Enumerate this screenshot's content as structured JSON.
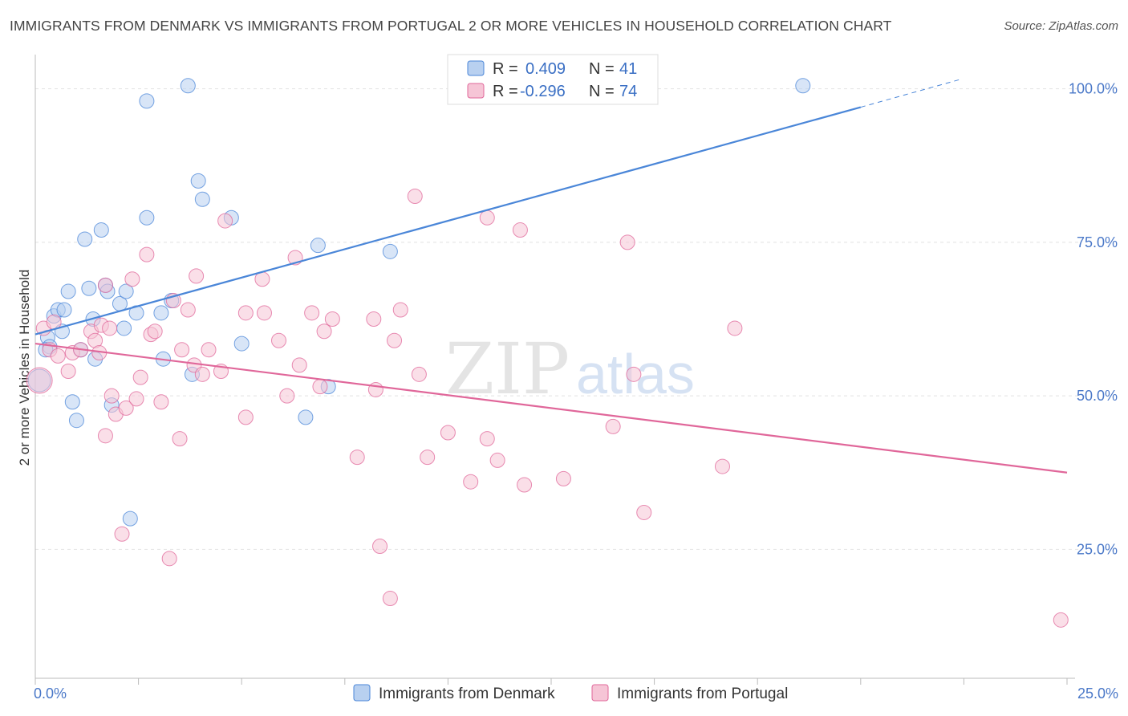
{
  "title": "IMMIGRANTS FROM DENMARK VS IMMIGRANTS FROM PORTUGAL 2 OR MORE VEHICLES IN HOUSEHOLD CORRELATION CHART",
  "source": "Source: ZipAtlas.com",
  "watermark": {
    "zip": "ZIP",
    "atlas": "atlas"
  },
  "colors": {
    "denmark": "#4a86d8",
    "portugal": "#e0679a",
    "denmark_fill": "#b8d0f0",
    "portugal_fill": "#f6c5d6"
  },
  "legend": {
    "denmark": {
      "r_label": "R = ",
      "r_value": "0.409",
      "n_label": "N = ",
      "n_value": "41"
    },
    "portugal": {
      "r_label": "R = ",
      "r_value": "-0.296",
      "n_label": "N = ",
      "n_value": "74"
    }
  },
  "chart_data": {
    "type": "scatter",
    "xlabel": "",
    "ylabel": "2 or more Vehicles in Household",
    "xlim": [
      0,
      25
    ],
    "ylim": [
      4,
      104
    ],
    "x_tick_labels": [
      {
        "value": 0,
        "label": "0.0%"
      },
      {
        "value": 25,
        "label": "25.0%"
      }
    ],
    "y_tick_labels": [
      {
        "value": 100,
        "label": "100.0%"
      },
      {
        "value": 75,
        "label": "75.0%"
      },
      {
        "value": 50,
        "label": "50.0%"
      },
      {
        "value": 25,
        "label": "25.0%"
      }
    ],
    "legend_placement": "top-center",
    "grid": true,
    "series": [
      {
        "name": "Immigrants from Denmark",
        "r": 0.409,
        "n": 41,
        "trend": {
          "x": [
            0,
            20
          ],
          "y": [
            60,
            97
          ]
        },
        "trend_dashed": {
          "x": [
            20,
            22.4
          ],
          "y": [
            97,
            101.5
          ]
        },
        "points": [
          [
            0.1,
            52.5,
            14
          ],
          [
            0.3,
            59.5,
            9
          ],
          [
            0.35,
            58,
            9
          ],
          [
            0.45,
            63,
            9
          ],
          [
            0.55,
            64,
            9
          ],
          [
            0.7,
            64,
            9
          ],
          [
            0.65,
            60.5,
            9
          ],
          [
            0.8,
            67,
            9
          ],
          [
            0.9,
            49,
            9
          ],
          [
            1.0,
            46,
            9
          ],
          [
            1.1,
            57.5,
            9
          ],
          [
            1.2,
            75.5,
            9
          ],
          [
            1.3,
            67.5,
            9
          ],
          [
            1.4,
            62.5,
            9
          ],
          [
            1.45,
            56,
            9
          ],
          [
            1.6,
            77,
            9
          ],
          [
            1.7,
            68,
            9
          ],
          [
            1.75,
            67,
            9
          ],
          [
            1.85,
            48.5,
            9
          ],
          [
            2.05,
            65,
            9
          ],
          [
            2.15,
            61,
            9
          ],
          [
            2.2,
            67,
            9
          ],
          [
            2.3,
            30,
            9
          ],
          [
            2.45,
            63.5,
            9
          ],
          [
            2.7,
            79,
            9
          ],
          [
            2.7,
            98,
            9
          ],
          [
            3.05,
            63.5,
            9
          ],
          [
            3.1,
            56,
            9
          ],
          [
            3.3,
            65.5,
            9
          ],
          [
            3.7,
            100.5,
            9
          ],
          [
            3.8,
            53.5,
            9
          ],
          [
            3.95,
            85,
            9
          ],
          [
            4.05,
            82,
            9
          ],
          [
            4.75,
            79,
            9
          ],
          [
            5.0,
            58.5,
            9
          ],
          [
            6.55,
            46.5,
            9
          ],
          [
            6.85,
            74.5,
            9
          ],
          [
            7.1,
            51.5,
            9
          ],
          [
            8.6,
            73.5,
            9
          ],
          [
            18.6,
            100.5,
            9
          ],
          [
            0.25,
            57.5,
            9
          ]
        ]
      },
      {
        "name": "Immigrants from Portugal",
        "r": -0.296,
        "n": 74,
        "trend": {
          "x": [
            0,
            25
          ],
          "y": [
            58.5,
            37.5
          ]
        },
        "points": [
          [
            0.1,
            52.5,
            16
          ],
          [
            0.2,
            61,
            9
          ],
          [
            0.35,
            57.5,
            9
          ],
          [
            0.45,
            62,
            9
          ],
          [
            0.55,
            56.5,
            9
          ],
          [
            0.8,
            54,
            9
          ],
          [
            0.9,
            57,
            9
          ],
          [
            1.1,
            57.5,
            9
          ],
          [
            1.35,
            60.5,
            9
          ],
          [
            1.45,
            59,
            9
          ],
          [
            1.55,
            57,
            9
          ],
          [
            1.6,
            61.5,
            9
          ],
          [
            1.7,
            68,
            9
          ],
          [
            1.7,
            43.5,
            9
          ],
          [
            1.8,
            61,
            9
          ],
          [
            1.85,
            50,
            9
          ],
          [
            1.95,
            47,
            9
          ],
          [
            2.1,
            27.5,
            9
          ],
          [
            2.2,
            48,
            9
          ],
          [
            2.35,
            69,
            9
          ],
          [
            2.45,
            49.5,
            9
          ],
          [
            2.55,
            53,
            9
          ],
          [
            2.7,
            73,
            9
          ],
          [
            2.8,
            60,
            9
          ],
          [
            2.9,
            60.5,
            9
          ],
          [
            3.05,
            49,
            9
          ],
          [
            3.25,
            23.5,
            9
          ],
          [
            3.35,
            65.5,
            9
          ],
          [
            3.5,
            43,
            9
          ],
          [
            3.55,
            57.5,
            9
          ],
          [
            3.7,
            64,
            9
          ],
          [
            3.85,
            55,
            9
          ],
          [
            3.9,
            69.5,
            9
          ],
          [
            4.05,
            53.5,
            9
          ],
          [
            4.2,
            57.5,
            9
          ],
          [
            4.5,
            54,
            9
          ],
          [
            4.6,
            78.5,
            9
          ],
          [
            5.1,
            46.5,
            9
          ],
          [
            5.1,
            63.5,
            9
          ],
          [
            5.5,
            69,
            9
          ],
          [
            5.55,
            63.5,
            9
          ],
          [
            5.9,
            59,
            9
          ],
          [
            6.1,
            50,
            9
          ],
          [
            6.3,
            72.5,
            9
          ],
          [
            6.4,
            55,
            9
          ],
          [
            6.7,
            63.5,
            9
          ],
          [
            6.9,
            51.5,
            9
          ],
          [
            7.0,
            60.5,
            9
          ],
          [
            7.2,
            62.5,
            9
          ],
          [
            7.8,
            40,
            9
          ],
          [
            8.2,
            62.5,
            9
          ],
          [
            8.25,
            51,
            9
          ],
          [
            8.35,
            25.5,
            9
          ],
          [
            8.6,
            17,
            9
          ],
          [
            8.7,
            59,
            9
          ],
          [
            8.85,
            64,
            9
          ],
          [
            9.2,
            82.5,
            9
          ],
          [
            9.3,
            53.5,
            9
          ],
          [
            9.5,
            40,
            9
          ],
          [
            10.0,
            44,
            9
          ],
          [
            10.55,
            36,
            9
          ],
          [
            10.95,
            79,
            9
          ],
          [
            10.95,
            43,
            9
          ],
          [
            11.2,
            39.5,
            9
          ],
          [
            11.75,
            77,
            9
          ],
          [
            11.85,
            35.5,
            9
          ],
          [
            12.8,
            36.5,
            9
          ],
          [
            14.0,
            45,
            9
          ],
          [
            14.35,
            75,
            9
          ],
          [
            14.5,
            53.5,
            9
          ],
          [
            14.75,
            31,
            9
          ],
          [
            16.65,
            38.5,
            9
          ],
          [
            16.95,
            61,
            9
          ],
          [
            24.85,
            13.5,
            9
          ]
        ]
      }
    ]
  }
}
